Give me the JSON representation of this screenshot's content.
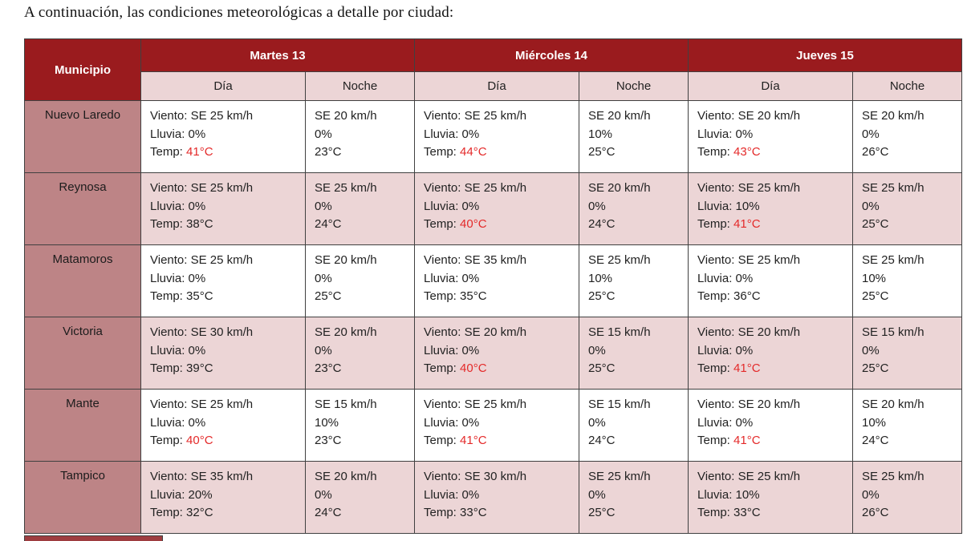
{
  "page": {
    "title": "A continuación, las condiciones meteorológicas a detalle por ciudad:"
  },
  "table": {
    "corner_header": "Municipio",
    "day_headers": [
      "Martes 13",
      "Miércoles 14",
      "Jueves 15"
    ],
    "sub_headers": {
      "day": "Día",
      "night": "Noche"
    },
    "labels": {
      "wind": "Viento:",
      "rain": "Lluvia:",
      "temp": "Temp:"
    },
    "colors": {
      "header_bg": "#9a1b1e",
      "municipio_bg": "#bd8486",
      "pink_row_bg": "#ecd5d6",
      "white_row_bg": "#ffffff",
      "border": "#404040",
      "temp_hot": "#e42a2a"
    },
    "rows": [
      {
        "municipio": "Nuevo Laredo",
        "days": [
          {
            "day": {
              "wind": "SE 25 km/h",
              "rain": "0%",
              "temp": "41°C",
              "hot": true
            },
            "night": {
              "wind": "SE 20 km/h",
              "rain": "0%",
              "temp": "23°C"
            }
          },
          {
            "day": {
              "wind": "SE 25 km/h",
              "rain": "0%",
              "temp": "44°C",
              "hot": true
            },
            "night": {
              "wind": "SE 20 km/h",
              "rain": "10%",
              "temp": "25°C"
            }
          },
          {
            "day": {
              "wind": "SE 20 km/h",
              "rain": "0%",
              "temp": "43°C",
              "hot": true
            },
            "night": {
              "wind": "SE 20 km/h",
              "rain": "0%",
              "temp": "26°C"
            }
          }
        ]
      },
      {
        "municipio": "Reynosa",
        "days": [
          {
            "day": {
              "wind": "SE 25 km/h",
              "rain": "0%",
              "temp": "38°C",
              "hot": false
            },
            "night": {
              "wind": "SE 25 km/h",
              "rain": "0%",
              "temp": "24°C"
            }
          },
          {
            "day": {
              "wind": "SE 25 km/h",
              "rain": "0%",
              "temp": "40°C",
              "hot": true
            },
            "night": {
              "wind": "SE 20 km/h",
              "rain": "0%",
              "temp": "24°C"
            }
          },
          {
            "day": {
              "wind": "SE 25 km/h",
              "rain": "10%",
              "temp": "41°C",
              "hot": true
            },
            "night": {
              "wind": "SE 25 km/h",
              "rain": "0%",
              "temp": "25°C"
            }
          }
        ]
      },
      {
        "municipio": "Matamoros",
        "days": [
          {
            "day": {
              "wind": "SE 25 km/h",
              "rain": "0%",
              "temp": "35°C",
              "hot": false
            },
            "night": {
              "wind": "SE 20 km/h",
              "rain": "0%",
              "temp": "25°C"
            }
          },
          {
            "day": {
              "wind": "SE 35 km/h",
              "rain": "0%",
              "temp": "35°C",
              "hot": false
            },
            "night": {
              "wind": "SE 25 km/h",
              "rain": "10%",
              "temp": "25°C"
            }
          },
          {
            "day": {
              "wind": "SE 25 km/h",
              "rain": "0%",
              "temp": "36°C",
              "hot": false
            },
            "night": {
              "wind": "SE 25 km/h",
              "rain": "10%",
              "temp": "25°C"
            }
          }
        ]
      },
      {
        "municipio": "Victoria",
        "days": [
          {
            "day": {
              "wind": "SE 30 km/h",
              "rain": "0%",
              "temp": "39°C",
              "hot": false
            },
            "night": {
              "wind": "SE 20 km/h",
              "rain": "0%",
              "temp": "23°C"
            }
          },
          {
            "day": {
              "wind": "SE 20 km/h",
              "rain": "0%",
              "temp": "40°C",
              "hot": true
            },
            "night": {
              "wind": "SE 15 km/h",
              "rain": "0%",
              "temp": "25°C"
            }
          },
          {
            "day": {
              "wind": "SE 20 km/h",
              "rain": "0%",
              "temp": "41°C",
              "hot": true
            },
            "night": {
              "wind": "SE 15 km/h",
              "rain": "0%",
              "temp": "25°C"
            }
          }
        ]
      },
      {
        "municipio": "Mante",
        "days": [
          {
            "day": {
              "wind": "SE 25 km/h",
              "rain": "0%",
              "temp": "40°C",
              "hot": true
            },
            "night": {
              "wind": "SE 15 km/h",
              "rain": "10%",
              "temp": "23°C"
            }
          },
          {
            "day": {
              "wind": "SE 25 km/h",
              "rain": "0%",
              "temp": "41°C",
              "hot": true
            },
            "night": {
              "wind": "SE 15 km/h",
              "rain": "0%",
              "temp": "24°C"
            }
          },
          {
            "day": {
              "wind": "SE 20 km/h",
              "rain": "0%",
              "temp": "41°C",
              "hot": true
            },
            "night": {
              "wind": "SE 20 km/h",
              "rain": "10%",
              "temp": "24°C"
            }
          }
        ]
      },
      {
        "municipio": "Tampico",
        "days": [
          {
            "day": {
              "wind": "SE 35 km/h",
              "rain": "20%",
              "temp": "32°C",
              "hot": false
            },
            "night": {
              "wind": "SE 20 km/h",
              "rain": "0%",
              "temp": "24°C"
            }
          },
          {
            "day": {
              "wind": "SE 30 km/h",
              "rain": "0%",
              "temp": "33°C",
              "hot": false
            },
            "night": {
              "wind": "SE 25 km/h",
              "rain": "0%",
              "temp": "25°C"
            }
          },
          {
            "day": {
              "wind": "SE 25 km/h",
              "rain": "10%",
              "temp": "33°C",
              "hot": false
            },
            "night": {
              "wind": "SE 25 km/h",
              "rain": "0%",
              "temp": "26°C"
            }
          }
        ]
      }
    ]
  }
}
